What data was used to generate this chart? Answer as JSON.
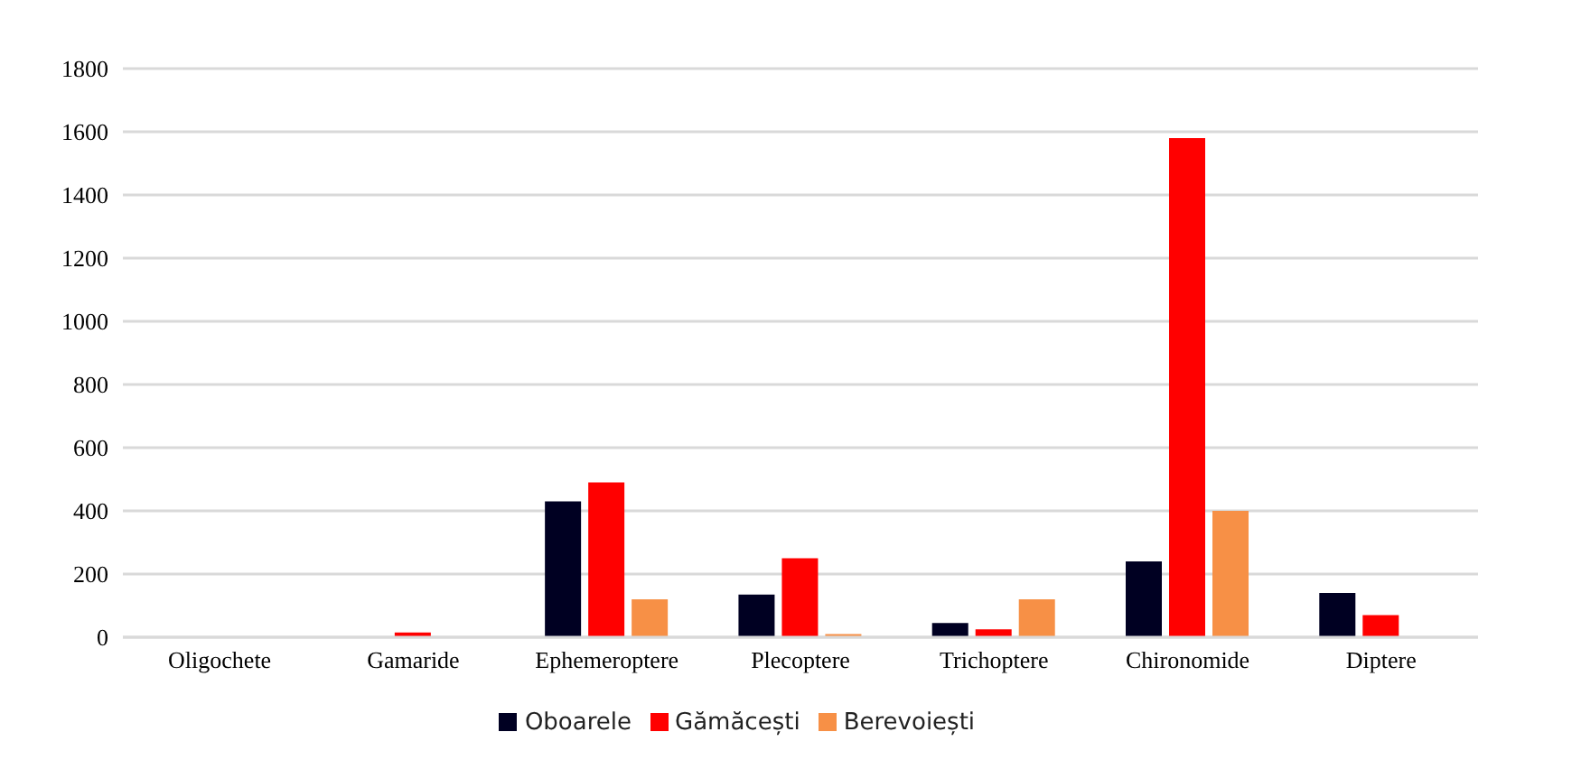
{
  "chart_data": {
    "type": "bar",
    "categories": [
      "Oligochete",
      "Gamaride",
      "Ephemeroptere",
      "Plecoptere",
      "Trichoptere",
      "Chironomide",
      "Diptere"
    ],
    "series": [
      {
        "name": "Oboarele",
        "color": "#000022",
        "values": [
          0,
          0,
          430,
          135,
          45,
          240,
          140
        ]
      },
      {
        "name": "Gămăcești",
        "color": "#ff0000",
        "values": [
          0,
          15,
          490,
          250,
          25,
          1580,
          70
        ]
      },
      {
        "name": "Berevoiești",
        "color": "#f79046",
        "values": [
          0,
          0,
          120,
          10,
          120,
          400,
          null
        ]
      }
    ],
    "ylim": [
      0,
      1800
    ],
    "yticks": [
      0,
      200,
      400,
      600,
      800,
      1000,
      1200,
      1400,
      1600,
      1800
    ],
    "grid": "y",
    "legend": "bottom"
  }
}
